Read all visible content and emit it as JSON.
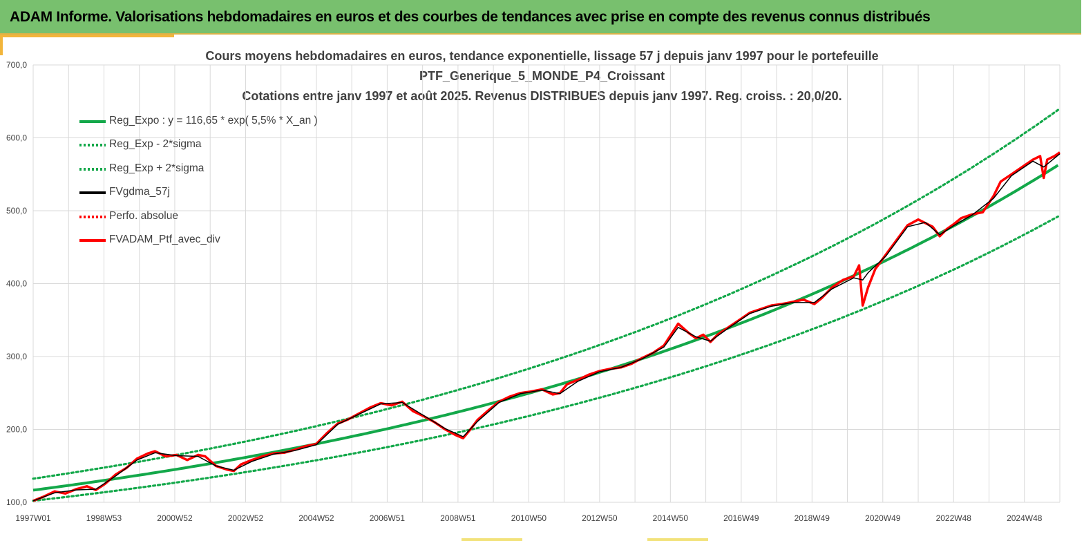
{
  "header": {
    "title": "ADAM Informe. Valorisations hebdomadaires en euros et des courbes de tendances avec prise en compte des revenus connus distribués"
  },
  "colors": {
    "banner": "#78c06e",
    "trend": "#13a84a",
    "portfolio": "#ff0000",
    "moving_average": "#000000",
    "grid": "#d9d9d9"
  },
  "chart_data": {
    "type": "line",
    "title_lines": [
      "Cours moyens hebdomadaires  en euros, tendance exponentielle, lissage 57 j depuis janv 1997 pour le portefeuille",
      "PTF_Generique_5_MONDE_P4_Croissant",
      "Cotations entre janv 1997 et août 2025. Revenus DISTRIBUES depuis janv 1997. Reg. croiss. : 20,0/20."
    ],
    "xlabel": "",
    "ylabel": "",
    "x_range": [
      1997.0,
      2025.65
    ],
    "ylim": [
      100,
      700
    ],
    "y_ticks": [
      "100,0",
      "200,0",
      "300,0",
      "400,0",
      "500,0",
      "600,0",
      "700,0"
    ],
    "x_tick_labels": [
      "1997W01",
      "1998W53",
      "2000W52",
      "2002W52",
      "2004W52",
      "2006W51",
      "2008W51",
      "2010W50",
      "2012W50",
      "2014W50",
      "2016W49",
      "2018W49",
      "2020W49",
      "2022W48",
      "2024W48"
    ],
    "grid": true,
    "legend_position": "top-left",
    "legend": [
      {
        "name": "Reg_Expo : y = 116,65 * exp( 5,5% *  X_an )",
        "style": "solid",
        "color": "#13a84a"
      },
      {
        "name": "Reg_Exp - 2*sigma",
        "style": "dotted",
        "color": "#13a84a"
      },
      {
        "name": "Reg_Exp + 2*sigma",
        "style": "dotted",
        "color": "#13a84a"
      },
      {
        "name": "FVgdma_57j",
        "style": "solid",
        "color": "#000000"
      },
      {
        "name": "Perfo. absolue",
        "style": "dotted",
        "color": "#ff0000"
      },
      {
        "name": "FVADAM_Ptf_avec_div",
        "style": "solid",
        "color": "#ff0000"
      }
    ],
    "regression": {
      "a": 116.65,
      "rate": 0.055,
      "upper_factor": 1.135,
      "lower_factor": 0.875
    },
    "series": [
      {
        "name": "FVADAM_Ptf_avec_div",
        "x": [
          1997.0,
          1997.3,
          1997.6,
          1997.9,
          1998.2,
          1998.5,
          1998.75,
          1999.0,
          1999.3,
          1999.6,
          1999.9,
          2000.2,
          2000.4,
          2000.7,
          2001.0,
          2001.3,
          2001.6,
          2001.8,
          2002.1,
          2002.4,
          2002.6,
          2002.8,
          2003.1,
          2003.4,
          2003.7,
          2004.0,
          2004.3,
          2004.6,
          2004.9,
          2005.2,
          2005.5,
          2005.8,
          2006.1,
          2006.4,
          2006.7,
          2007.0,
          2007.3,
          2007.6,
          2007.9,
          2008.2,
          2008.5,
          2008.8,
          2009.0,
          2009.2,
          2009.4,
          2009.7,
          2010.0,
          2010.3,
          2010.6,
          2010.9,
          2011.2,
          2011.5,
          2011.7,
          2011.9,
          2012.2,
          2012.5,
          2012.8,
          2013.1,
          2013.4,
          2013.7,
          2014.0,
          2014.3,
          2014.6,
          2014.8,
          2015.0,
          2015.3,
          2015.5,
          2015.7,
          2015.9,
          2016.1,
          2016.4,
          2016.7,
          2017.0,
          2017.3,
          2017.6,
          2017.9,
          2018.2,
          2018.5,
          2018.8,
          2019.0,
          2019.3,
          2019.6,
          2019.9,
          2020.05,
          2020.15,
          2020.3,
          2020.5,
          2020.8,
          2021.1,
          2021.4,
          2021.7,
          2021.9,
          2022.1,
          2022.3,
          2022.5,
          2022.7,
          2022.9,
          2023.2,
          2023.5,
          2023.8,
          2024.0,
          2024.3,
          2024.6,
          2024.9,
          2025.1,
          2025.2,
          2025.3,
          2025.5,
          2025.65
        ],
        "values": [
          102,
          108,
          115,
          112,
          118,
          122,
          117,
          125,
          138,
          147,
          160,
          167,
          170,
          163,
          165,
          158,
          165,
          163,
          150,
          145,
          143,
          152,
          158,
          163,
          167,
          168,
          172,
          177,
          180,
          195,
          208,
          214,
          222,
          230,
          236,
          233,
          238,
          225,
          218,
          210,
          200,
          192,
          188,
          200,
          213,
          226,
          238,
          245,
          250,
          252,
          255,
          248,
          250,
          262,
          268,
          275,
          280,
          283,
          285,
          290,
          298,
          305,
          315,
          330,
          345,
          332,
          325,
          330,
          320,
          330,
          340,
          350,
          360,
          365,
          370,
          372,
          375,
          378,
          372,
          380,
          395,
          405,
          410,
          425,
          370,
          395,
          420,
          440,
          460,
          480,
          488,
          483,
          478,
          465,
          475,
          482,
          490,
          495,
          498,
          520,
          540,
          550,
          560,
          570,
          575,
          545,
          570,
          575,
          580
        ]
      },
      {
        "name": "FVgdma_57j",
        "x": [
          1997.0,
          1997.6,
          1998.2,
          1998.75,
          1999.3,
          1999.9,
          2000.4,
          2001.0,
          2001.6,
          2002.1,
          2002.6,
          2003.1,
          2003.7,
          2004.3,
          2004.9,
          2005.5,
          2006.1,
          2006.7,
          2007.3,
          2007.9,
          2008.5,
          2009.0,
          2009.4,
          2010.0,
          2010.6,
          2011.2,
          2011.7,
          2012.2,
          2012.8,
          2013.4,
          2014.0,
          2014.6,
          2015.0,
          2015.5,
          2015.9,
          2016.4,
          2017.0,
          2017.6,
          2018.2,
          2018.8,
          2019.3,
          2019.9,
          2020.15,
          2020.3,
          2020.8,
          2021.4,
          2021.9,
          2022.3,
          2022.7,
          2023.2,
          2023.8,
          2024.3,
          2024.9,
          2025.2,
          2025.5,
          2025.65
        ],
        "values": [
          102,
          113,
          117,
          118,
          136,
          158,
          168,
          164,
          163,
          150,
          144,
          156,
          166,
          171,
          179,
          207,
          221,
          235,
          237,
          219,
          201,
          190,
          211,
          237,
          249,
          254,
          249,
          266,
          279,
          285,
          297,
          313,
          340,
          327,
          321,
          339,
          359,
          369,
          374,
          374,
          393,
          408,
          405,
          415,
          438,
          478,
          484,
          467,
          480,
          494,
          517,
          548,
          568,
          560,
          572,
          578
        ]
      }
    ]
  }
}
